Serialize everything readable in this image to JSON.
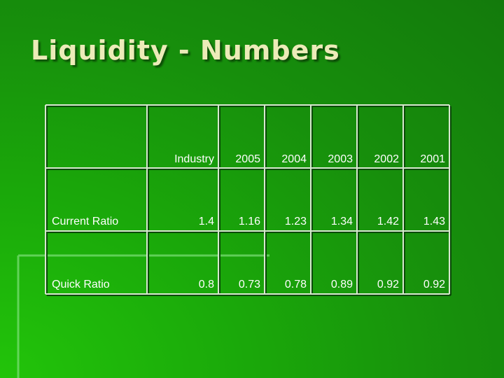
{
  "title": "Liquidity - Numbers",
  "table": {
    "columns": [
      "Industry",
      "2005",
      "2004",
      "2003",
      "2002",
      "2001"
    ],
    "rows": [
      {
        "label": "Current Ratio",
        "values": [
          1.4,
          1.16,
          1.23,
          1.34,
          1.42,
          1.43
        ]
      },
      {
        "label": "Quick Ratio",
        "values": [
          0.8,
          0.73,
          0.78,
          0.89,
          0.92,
          0.92
        ]
      }
    ]
  }
}
